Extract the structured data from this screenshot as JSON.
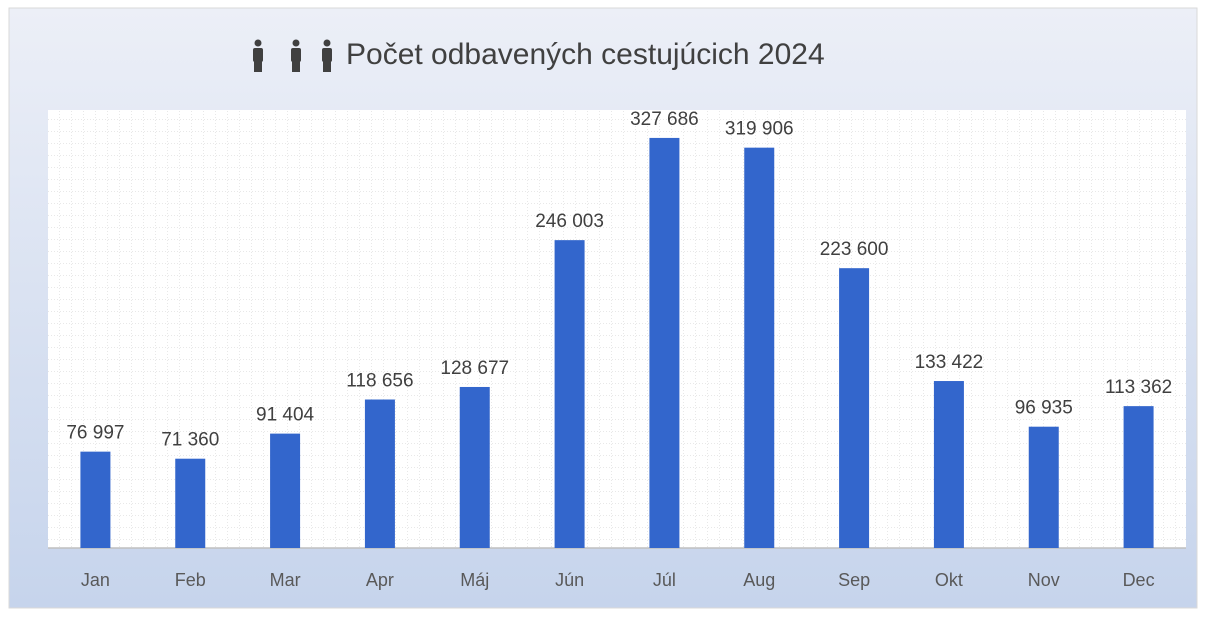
{
  "chart_data": {
    "type": "bar",
    "title": "Počet odbavených cestujúcich 2024",
    "categories": [
      "Jan",
      "Feb",
      "Mar",
      "Apr",
      "Máj",
      "Jún",
      "Júl",
      "Aug",
      "Sep",
      "Okt",
      "Nov",
      "Dec"
    ],
    "values": [
      76997,
      71360,
      91404,
      118656,
      128677,
      246003,
      327686,
      319906,
      223600,
      133422,
      96935,
      113362
    ],
    "value_labels": [
      "76 997",
      "71 360",
      "91 404",
      "118 656",
      "128 677",
      "246 003",
      "327 686",
      "319 906",
      "223 600",
      "133 422",
      "96 935",
      "113 362"
    ],
    "color": "#3366cc",
    "ylim": [
      0,
      350000
    ],
    "grid": true
  }
}
